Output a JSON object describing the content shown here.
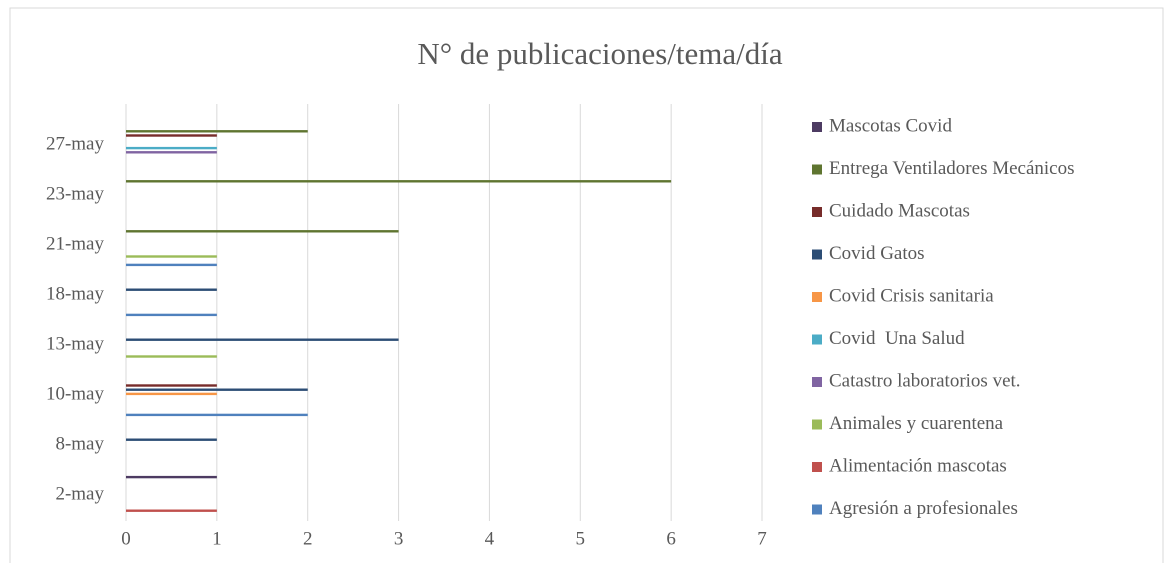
{
  "chart_data": {
    "type": "bar",
    "orientation": "horizontal",
    "title": "N° de publicaciones/tema/día",
    "categories": [
      "2-may",
      "8-may",
      "10-may",
      "13-may",
      "18-may",
      "21-may",
      "23-may",
      "27-may"
    ],
    "series": [
      {
        "name": "Agresión a profesionales",
        "color": "#4f81bd",
        "values": [
          0,
          0,
          2,
          0,
          1,
          1,
          0,
          0
        ]
      },
      {
        "name": "Alimentación mascotas",
        "color": "#c0504d",
        "values": [
          1,
          0,
          0,
          0,
          0,
          0,
          0,
          0
        ]
      },
      {
        "name": "Animales y cuarentena",
        "color": "#9bbb59",
        "values": [
          0,
          0,
          0,
          1,
          0,
          1,
          0,
          0
        ]
      },
      {
        "name": "Catastro laboratorios vet.",
        "color": "#8064a2",
        "values": [
          0,
          0,
          0,
          0,
          0,
          0,
          0,
          1
        ]
      },
      {
        "name": "Covid  Una Salud",
        "color": "#4bacc6",
        "values": [
          0,
          0,
          0,
          0,
          0,
          0,
          0,
          1
        ]
      },
      {
        "name": "Covid Crisis sanitaria",
        "color": "#f79646",
        "values": [
          0,
          0,
          1,
          0,
          0,
          0,
          0,
          0
        ]
      },
      {
        "name": "Covid Gatos",
        "color": "#2c4d75",
        "values": [
          0,
          1,
          2,
          3,
          1,
          0,
          0,
          0
        ]
      },
      {
        "name": "Cuidado Mascotas",
        "color": "#772c2a",
        "values": [
          0,
          0,
          1,
          0,
          0,
          0,
          0,
          1
        ]
      },
      {
        "name": "Entrega Ventiladores Mecánicos",
        "color": "#5f7530",
        "values": [
          0,
          0,
          0,
          0,
          0,
          3,
          6,
          2
        ]
      },
      {
        "name": "Mascotas Covid",
        "color": "#4d3b62",
        "values": [
          1,
          0,
          0,
          0,
          0,
          0,
          0,
          0
        ]
      }
    ],
    "xlim": [
      0,
      7
    ],
    "xticks": [
      0,
      1,
      2,
      3,
      4,
      5,
      6,
      7
    ],
    "grid": true,
    "legend": "right"
  }
}
